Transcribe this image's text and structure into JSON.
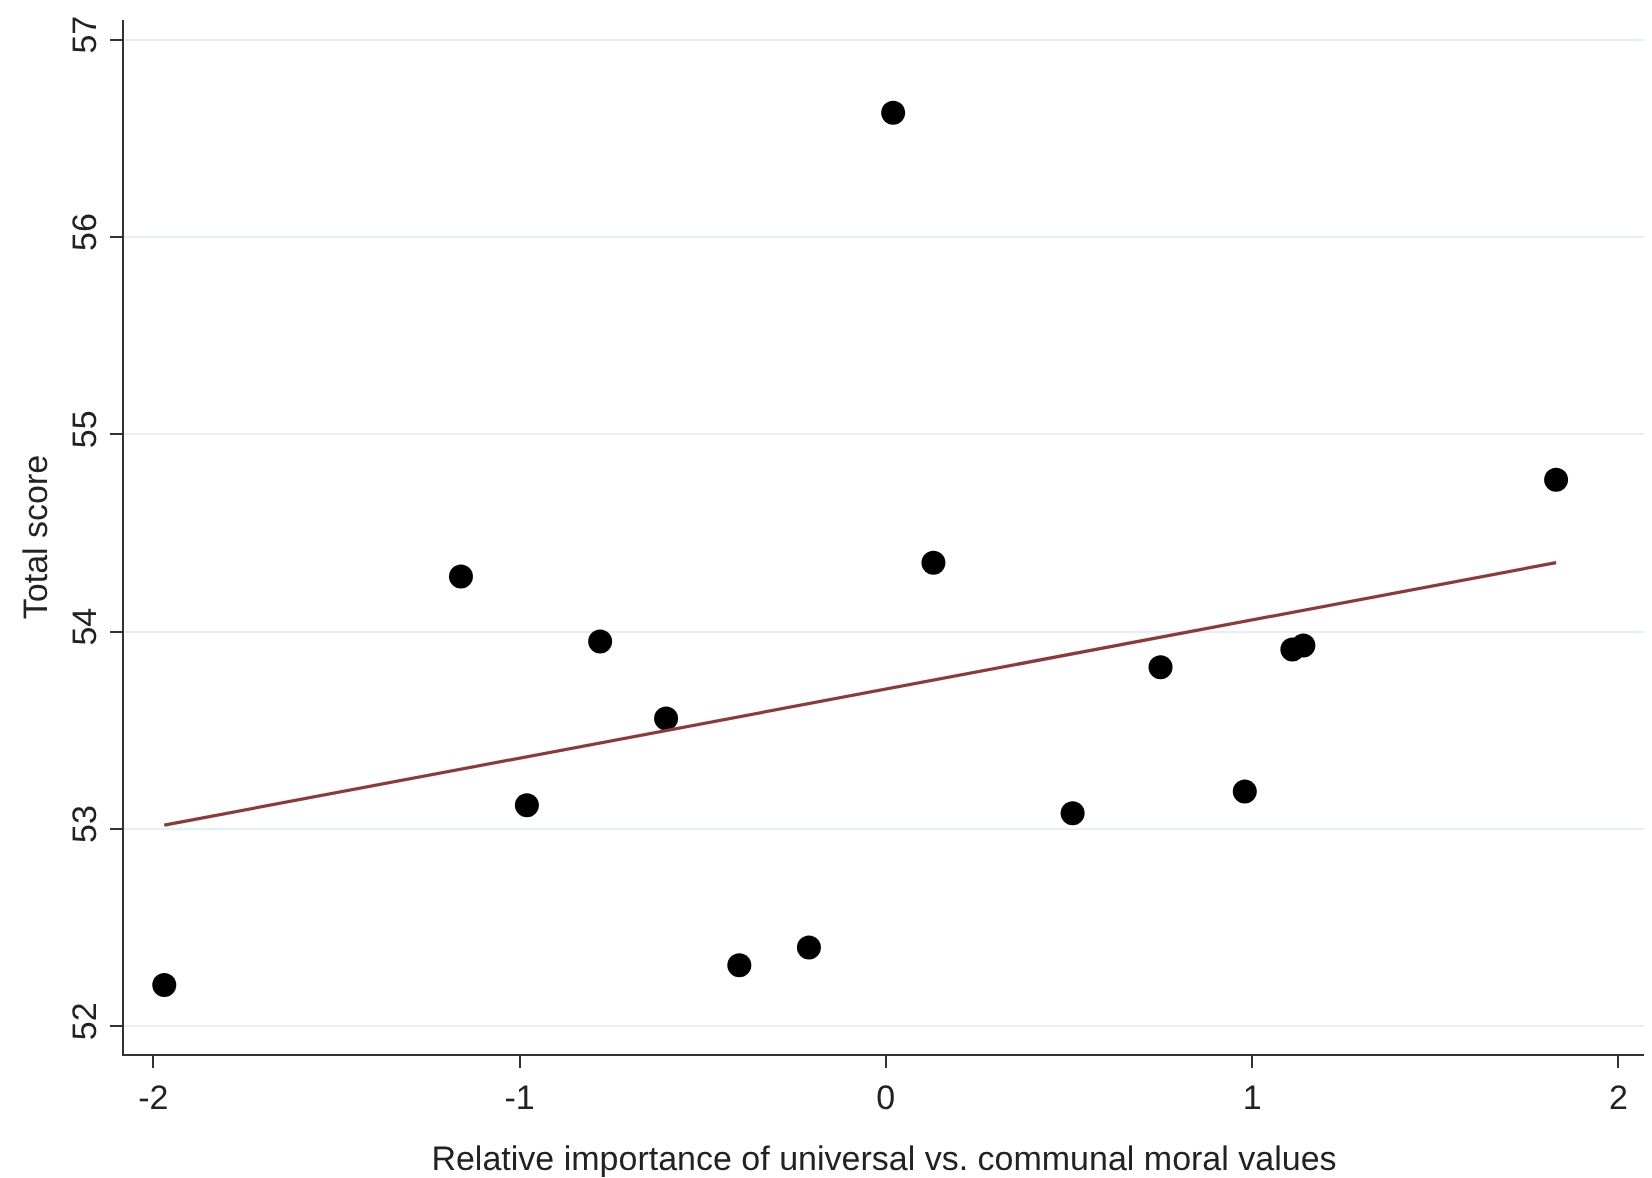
{
  "chart_data": {
    "type": "scatter",
    "xlabel": "Relative importance of universal vs. communal moral values",
    "ylabel": "Total score",
    "xlim": [
      -2.08,
      2.07
    ],
    "ylim": [
      51.86,
      57.1
    ],
    "xticks": [
      -2,
      -1,
      0,
      1,
      2
    ],
    "yticks": [
      52,
      53,
      54,
      55,
      56,
      57
    ],
    "grid": "y",
    "marker": "circle",
    "series": [
      {
        "color": "#000000",
        "x": [
          -1.97,
          -1.16,
          -0.98,
          -0.78,
          -0.6,
          -0.4,
          -0.21,
          0.02,
          0.13,
          0.51,
          0.75,
          0.98,
          1.11,
          1.14,
          1.83
        ],
        "values": [
          52.21,
          54.28,
          53.12,
          53.95,
          53.56,
          52.31,
          52.4,
          56.63,
          54.35,
          53.08,
          53.82,
          53.19,
          53.91,
          53.93,
          54.77
        ]
      },
      {
        "type": "line",
        "marker": "none",
        "color": "#8b3a3a",
        "x": [
          -1.97,
          1.83
        ],
        "values": [
          53.02,
          54.35
        ]
      }
    ]
  }
}
